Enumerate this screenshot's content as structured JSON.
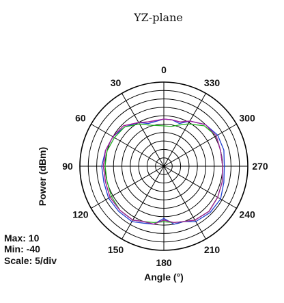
{
  "chart_data": {
    "type": "polar-line",
    "title": "YZ-plane",
    "xlabel": "Angle (°)",
    "ylabel": "Power (dBm)",
    "angle_ticks": [
      "0",
      "30",
      "60",
      "90",
      "120",
      "150",
      "180",
      "210",
      "240",
      "270",
      "300",
      "330"
    ],
    "angle_direction": "counterclockwise",
    "angle_zero": "top",
    "r_range": [
      -40,
      10
    ],
    "r_step": 5,
    "grid": true,
    "info": {
      "max_label": "Max: 10",
      "min_label": "Min: -40",
      "scale_label": "Scale: 5/div"
    },
    "series": [
      {
        "color": "#e02020",
        "angles": [
          0,
          20,
          30,
          45,
          60,
          75,
          90,
          105,
          120,
          135,
          150,
          160,
          170,
          180,
          190,
          200,
          210,
          225,
          240,
          255,
          270,
          285,
          300,
          315,
          330,
          340,
          350
        ],
        "values": [
          -12,
          -12,
          -10,
          -6,
          -5,
          -4,
          -4,
          -4,
          -3,
          -3,
          -3,
          -5,
          -5,
          -8,
          -6,
          -5,
          -3,
          -2,
          -3,
          -4,
          -5,
          -5,
          -4,
          -5,
          -9,
          -12,
          -12
        ]
      },
      {
        "color": "#2040d0",
        "angles": [
          0,
          20,
          30,
          45,
          60,
          75,
          90,
          105,
          120,
          135,
          150,
          160,
          170,
          180,
          190,
          200,
          210,
          225,
          240,
          255,
          270,
          285,
          300,
          315,
          330,
          340,
          350
        ],
        "values": [
          -12,
          -13,
          -10,
          -7,
          -5,
          -4,
          -3,
          -3,
          -2,
          -2,
          -2,
          -4,
          -5,
          -9,
          -5,
          -5,
          -2,
          -1,
          -1,
          -3,
          -4,
          -3,
          -3,
          -5,
          -9,
          -13,
          -12
        ]
      },
      {
        "color": "#20b020",
        "angles": [
          0,
          20,
          30,
          45,
          60,
          75,
          90,
          105,
          120,
          135,
          150,
          160,
          170,
          180,
          190,
          200,
          210,
          225,
          240,
          255,
          270,
          285,
          300,
          315,
          330,
          340,
          350
        ],
        "values": [
          -16,
          -14,
          -11,
          -7,
          -6,
          -5,
          -5,
          -5,
          -4,
          -3,
          -3,
          -5,
          -6,
          -7,
          -6,
          -5,
          -3,
          -2,
          -3,
          -4,
          -5,
          -5,
          -4,
          -6,
          -11,
          -14,
          -16
        ]
      },
      {
        "color": "#a020a0",
        "angles": [
          0,
          20,
          30,
          45,
          60,
          75,
          90,
          105,
          120,
          135,
          150,
          160,
          170,
          180,
          190,
          200,
          210,
          225,
          240,
          255,
          270,
          285,
          300,
          315,
          330,
          340,
          350
        ],
        "values": [
          -12,
          -12,
          -10,
          -6,
          -5,
          -4,
          -4,
          -4,
          -3,
          -3,
          -3,
          -5,
          -5,
          -8,
          -6,
          -5,
          -3,
          -2,
          -3,
          -4,
          -5,
          -5,
          -4,
          -5,
          -9,
          -12,
          -12
        ]
      }
    ]
  }
}
